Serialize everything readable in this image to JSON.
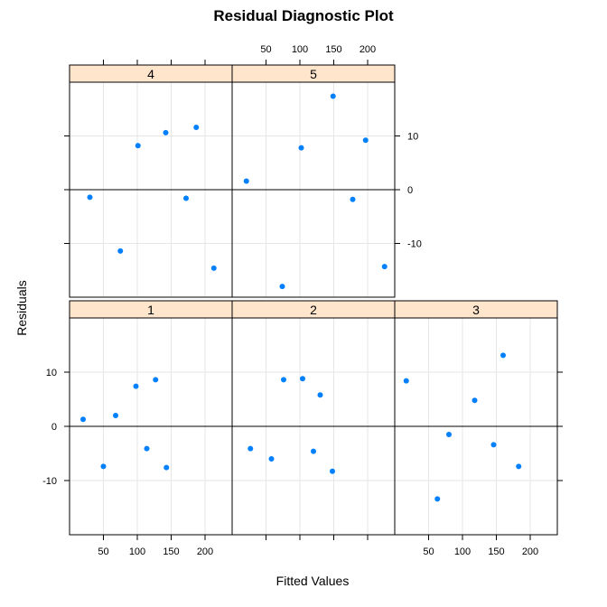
{
  "chart_data": {
    "type": "scatter",
    "title": "Residual Diagnostic Plot",
    "xlabel": "Fitted Values",
    "ylabel": "Residuals",
    "xlim": [
      0,
      240
    ],
    "ylim": [
      -20,
      20
    ],
    "x_ticks": [
      50,
      100,
      150,
      200
    ],
    "y_ticks": [
      -10,
      0,
      10
    ],
    "grid": true,
    "reference_line_y": 0,
    "strip_color": "#ffe5cc",
    "point_color": "#0080ff",
    "grid_color": "#e6e6e6",
    "panels": [
      {
        "label": "1",
        "points": [
          {
            "x": 20,
            "y": 1.3
          },
          {
            "x": 50,
            "y": -7.4
          },
          {
            "x": 68,
            "y": 2.0
          },
          {
            "x": 98,
            "y": 7.4
          },
          {
            "x": 114,
            "y": -4.1
          },
          {
            "x": 127,
            "y": 8.6
          },
          {
            "x": 143,
            "y": -7.6
          }
        ]
      },
      {
        "label": "2",
        "points": [
          {
            "x": 27,
            "y": -4.1
          },
          {
            "x": 58,
            "y": -6.0
          },
          {
            "x": 76,
            "y": 8.6
          },
          {
            "x": 104,
            "y": 8.8
          },
          {
            "x": 120,
            "y": -4.6
          },
          {
            "x": 130,
            "y": 5.8
          },
          {
            "x": 148,
            "y": -8.3
          }
        ]
      },
      {
        "label": "3",
        "points": [
          {
            "x": 17,
            "y": 8.4
          },
          {
            "x": 63,
            "y": -13.4
          },
          {
            "x": 80,
            "y": -1.5
          },
          {
            "x": 118,
            "y": 4.8
          },
          {
            "x": 146,
            "y": -3.4
          },
          {
            "x": 160,
            "y": 13.1
          },
          {
            "x": 183,
            "y": -7.4
          }
        ]
      },
      {
        "label": "4",
        "points": [
          {
            "x": 30,
            "y": -1.4
          },
          {
            "x": 75,
            "y": -11.4
          },
          {
            "x": 101,
            "y": 8.2
          },
          {
            "x": 142,
            "y": 10.6
          },
          {
            "x": 172,
            "y": -1.6
          },
          {
            "x": 187,
            "y": 11.6
          },
          {
            "x": 213,
            "y": -14.6
          }
        ]
      },
      {
        "label": "5",
        "points": [
          {
            "x": 21,
            "y": 1.6
          },
          {
            "x": 74,
            "y": -18.0
          },
          {
            "x": 102,
            "y": 7.8
          },
          {
            "x": 149,
            "y": 17.4
          },
          {
            "x": 178,
            "y": -1.8
          },
          {
            "x": 197,
            "y": 9.2
          },
          {
            "x": 225,
            "y": -14.3
          }
        ]
      }
    ]
  }
}
